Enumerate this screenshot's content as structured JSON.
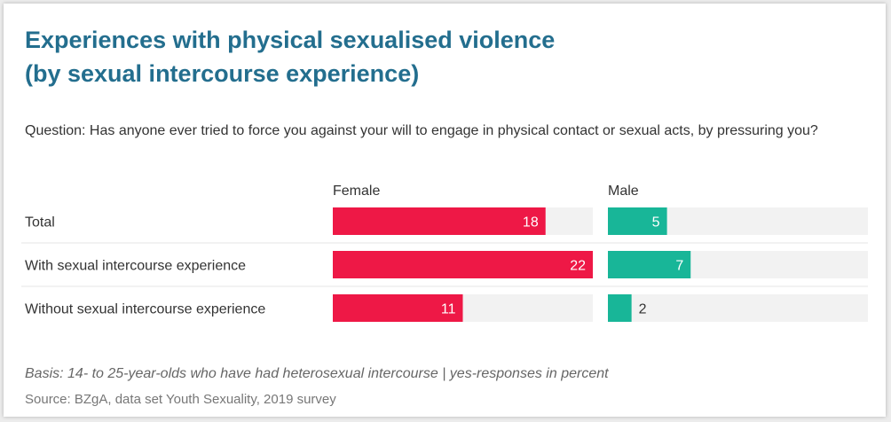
{
  "chart_data": {
    "type": "bar",
    "title": [
      "Experiences with physical sexualised violence",
      "(by sexual intercourse experience)"
    ],
    "subtitle": "Question: Has anyone ever tried to force you against your will to engage in physical contact or sexual acts, by pressuring you?",
    "categories": [
      "Total",
      "With sexual intercourse experience",
      "Without sexual intercourse experience"
    ],
    "series": [
      {
        "name": "Female",
        "color": "#ee1846",
        "values": [
          18,
          22,
          11
        ]
      },
      {
        "name": "Male",
        "color": "#18b698",
        "values": [
          5,
          7,
          2
        ]
      }
    ],
    "xlim": [
      0,
      22
    ],
    "notes": [
      "Basis: 14- to 25-year-olds who have had heterosexual intercourse | yes-responses in percent",
      "Source: BZgA, data set Youth Sexuality, 2019 survey"
    ]
  }
}
